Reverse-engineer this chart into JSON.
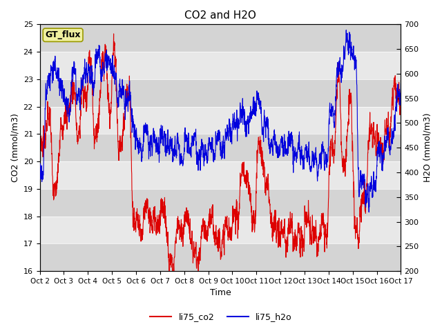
{
  "title": "CO2 and H2O",
  "xlabel": "Time",
  "ylabel_left": "CO2 (mmol/m3)",
  "ylabel_right": "H2O (mmol/m3)",
  "co2_color": "#dd0000",
  "h2o_color": "#0000dd",
  "ylim_left": [
    16.0,
    25.0
  ],
  "ylim_right": [
    200,
    700
  ],
  "yticks_left": [
    16.0,
    17.0,
    18.0,
    19.0,
    20.0,
    21.0,
    22.0,
    23.0,
    24.0,
    25.0
  ],
  "yticks_right": [
    200,
    250,
    300,
    350,
    400,
    450,
    500,
    550,
    600,
    650,
    700
  ],
  "xtick_labels": [
    "Oct 2",
    "Oct 3",
    "Oct 4",
    "Oct 5",
    "Oct 6",
    "Oct 7",
    "Oct 8",
    "Oct 9",
    "Oct 10",
    "Oct 11",
    "Oct 12",
    "Oct 13",
    "Oct 14",
    "Oct 15",
    "Oct 16",
    "Oct 17"
  ],
  "legend_labels": [
    "li75_co2",
    "li75_h2o"
  ],
  "gt_flux_label": "GT_flux",
  "plot_bg_color": "#e8e8e8",
  "band_light": "#e8e8e8",
  "band_dark": "#d4d4d4",
  "line_width": 0.8,
  "figsize": [
    6.4,
    4.8
  ],
  "dpi": 100
}
